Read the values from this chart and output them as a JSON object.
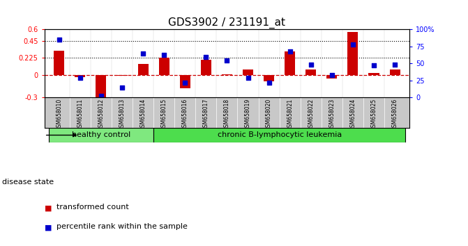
{
  "title": "GDS3902 / 231191_at",
  "samples": [
    "GSM658010",
    "GSM658011",
    "GSM658012",
    "GSM658013",
    "GSM658014",
    "GSM658015",
    "GSM658016",
    "GSM658017",
    "GSM658018",
    "GSM658019",
    "GSM658020",
    "GSM658021",
    "GSM658022",
    "GSM658023",
    "GSM658024",
    "GSM658025",
    "GSM658026"
  ],
  "transformed_count": [
    0.32,
    -0.03,
    -0.33,
    -0.01,
    0.14,
    0.225,
    -0.18,
    0.2,
    0.01,
    0.07,
    -0.09,
    0.31,
    0.07,
    -0.05,
    0.57,
    0.02,
    0.07
  ],
  "percentile_rank_pct": [
    85,
    29,
    2,
    15,
    65,
    63,
    22,
    60,
    54,
    29,
    22,
    68,
    48,
    33,
    78,
    47,
    48
  ],
  "group_labels": [
    "healthy control",
    "chronic B-lymphocytic leukemia"
  ],
  "group_sizes": [
    5,
    12
  ],
  "group_colors": [
    "#7fe87f",
    "#4ddd4d"
  ],
  "bar_color": "#cc0000",
  "dot_color": "#0000cc",
  "background_color": "#ffffff",
  "xtick_bg": "#c8c8c8",
  "ylim_left": [
    -0.3,
    0.6
  ],
  "ylim_right": [
    0,
    100
  ],
  "yticks_left": [
    -0.3,
    0.0,
    0.225,
    0.45,
    0.6
  ],
  "ytick_labels_left": [
    "-0.3",
    "0",
    "0.225",
    "0.45",
    "0.6"
  ],
  "yticks_right": [
    0,
    25,
    50,
    75,
    100
  ],
  "ytick_labels_right": [
    "0",
    "25",
    "50",
    "75",
    "100%"
  ],
  "hlines": [
    0.225,
    0.45
  ],
  "zero_line_color": "#cc0000",
  "hline_color": "#000000",
  "title_fontsize": 11,
  "tick_fontsize": 7,
  "label_fontsize": 8,
  "legend_fontsize": 8,
  "sample_fontsize": 5.5,
  "disease_state_label": "disease state",
  "legend_line1": "transformed count",
  "legend_line2": "percentile rank within the sample",
  "bar_width": 0.5
}
